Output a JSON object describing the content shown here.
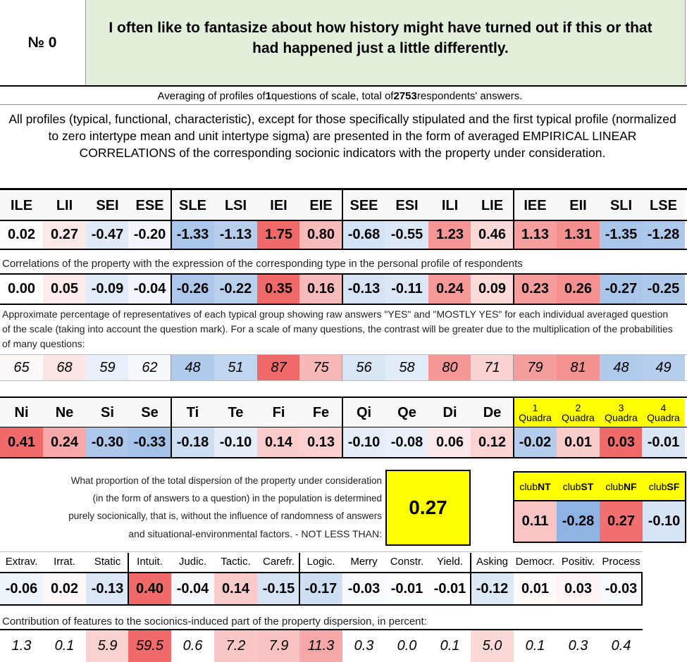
{
  "header": {
    "number_label": "№ 0",
    "question": "I often like to fantasize about how history might have turned out if this or that had happened just a little differently."
  },
  "summary": {
    "prefix": "Averaging of profiles of ",
    "questions": "1",
    "middle": " questions of scale, total of ",
    "respondents": "2753",
    "suffix": " respondents' answers."
  },
  "intro_text": "All profiles (typical, functional, characteristic), except for those specifically stipulated and the first typical profile (normalized to zero intertype mean and unit intertype sigma) are presented in the form of averaged EMPIRICAL LINEAR CORRELATIONS of the corresponding socionic indicators with the property under consideration.",
  "types": [
    "ILE",
    "LII",
    "SEI",
    "ESE",
    "SLE",
    "LSI",
    "IEI",
    "EIE",
    "SEE",
    "ESI",
    "ILI",
    "LIE",
    "IEE",
    "EII",
    "SLI",
    "LSE"
  ],
  "type_profile": [
    "0.02",
    "0.27",
    "-0.47",
    "-0.20",
    "-1.33",
    "-1.13",
    "1.75",
    "0.80",
    "-0.68",
    "-0.55",
    "1.23",
    "0.46",
    "1.13",
    "1.31",
    "-1.35",
    "-1.28"
  ],
  "correlation_note": "Correlations of the property with the expression of the corresponding type in the personal profile of respondents",
  "type_correlations": [
    "0.00",
    "0.05",
    "-0.09",
    "-0.04",
    "-0.26",
    "-0.22",
    "0.35",
    "0.16",
    "-0.13",
    "-0.11",
    "0.24",
    "0.09",
    "0.23",
    "0.26",
    "-0.27",
    "-0.25"
  ],
  "percentage_note": "Approximate percentage of representatives of each typical group showing raw answers \"YES\" and \"MOSTLY YES\" for each individual averaged question of the scale (taking into account the question mark). For a scale of many questions, the contrast will be greater due to the multiplication of the probabilities of many questions:",
  "type_percentages": [
    "65",
    "68",
    "59",
    "62",
    "48",
    "51",
    "87",
    "75",
    "56",
    "58",
    "80",
    "71",
    "79",
    "81",
    "48",
    "49"
  ],
  "functions": [
    "Ni",
    "Ne",
    "Si",
    "Se",
    "Ti",
    "Te",
    "Fi",
    "Fe",
    "Qi",
    "Qe",
    "Di",
    "De"
  ],
  "function_values": [
    "0.41",
    "0.24",
    "-0.30",
    "-0.33",
    "-0.18",
    "-0.10",
    "0.14",
    "0.13",
    "-0.10",
    "-0.08",
    "0.06",
    "0.12"
  ],
  "quadras": [
    {
      "num": "1",
      "label": "Quadra",
      "value": "-0.02"
    },
    {
      "num": "2",
      "label": "Quadra",
      "value": "0.01"
    },
    {
      "num": "3",
      "label": "Quadra",
      "value": "0.03"
    },
    {
      "num": "4",
      "label": "Quadra",
      "value": "-0.01"
    }
  ],
  "dispersion": {
    "line1": "What proportion of the total dispersion of the property under consideration",
    "line2": "(in the form of answers to a question) in the population is determined",
    "line3": "purely socionically, that is, without the influence of randomness of answers",
    "line4": "and situational-environmental factors. - NOT LESS THAN:",
    "value": "0.27"
  },
  "clubs": [
    {
      "prefix": "club",
      "code": "NT",
      "value": "0.11"
    },
    {
      "prefix": "club",
      "code": "ST",
      "value": "-0.28"
    },
    {
      "prefix": "club",
      "code": "NF",
      "value": "0.27"
    },
    {
      "prefix": "club",
      "code": "SF",
      "value": "-0.10"
    }
  ],
  "traits": [
    "Extrav.",
    "Irrat.",
    "Static",
    "Intuit.",
    "Judic.",
    "Tactic.",
    "Carefr.",
    "Logic.",
    "Merry",
    "Constr.",
    "Yield.",
    "Asking",
    "Democr.",
    "Positiv.",
    "Process"
  ],
  "trait_values": [
    "-0.06",
    "0.02",
    "-0.13",
    "0.40",
    "-0.04",
    "0.14",
    "-0.15",
    "-0.17",
    "-0.03",
    "-0.01",
    "-0.01",
    "-0.12",
    "0.01",
    "0.03",
    "-0.03"
  ],
  "contribution_note": "Contribution of features to the socionics-induced part of the property dispersion, in percent:",
  "trait_contributions": [
    "1.3",
    "0.1",
    "5.9",
    "59.5",
    "0.6",
    "7.2",
    "7.9",
    "11.3",
    "0.3",
    "0.0",
    "0.1",
    "5.0",
    "0.1",
    "0.3",
    "0.4"
  ],
  "colors": {
    "header_green": "#e2efda",
    "yellow": "#ffff00",
    "strong_red": "#f06a6a",
    "strong_blue": "#8fb4e3"
  }
}
